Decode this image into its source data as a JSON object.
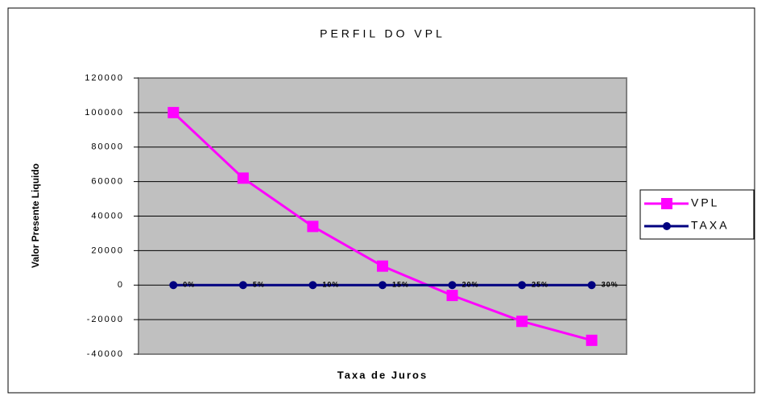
{
  "chart_data": {
    "type": "line",
    "title": "PERFIL DO VPL",
    "x_label": "Taxa de Juros",
    "y_label": "Valor Presente Liquido",
    "categories": [
      null,
      null,
      null,
      null,
      null,
      null,
      null
    ],
    "series": [
      {
        "name": "VPL",
        "color": "#ff00ff",
        "marker": "square",
        "values": [
          100000,
          62000,
          34000,
          11000,
          -6000,
          -21000,
          -32000
        ]
      },
      {
        "name": "TAXA",
        "color": "#000080",
        "marker": "circle",
        "values": [
          0,
          0.05,
          0.1,
          0.15,
          0.2,
          0.25,
          0.3
        ],
        "value_labels": [
          "0%",
          "5%",
          "10%",
          "15%",
          "20%",
          "25%",
          "30%"
        ]
      }
    ],
    "ylim": [
      -40000,
      120000
    ],
    "yticks": [
      -40000,
      -20000,
      0,
      20000,
      40000,
      60000,
      80000,
      100000,
      120000
    ],
    "grid": true,
    "legend": "right"
  }
}
